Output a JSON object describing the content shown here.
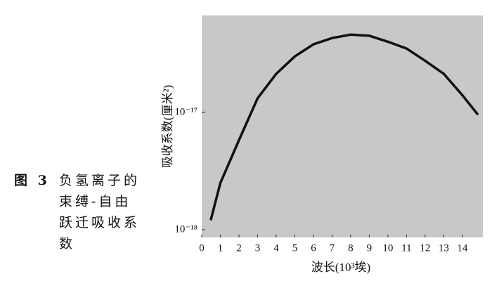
{
  "chart_data": {
    "type": "line",
    "x_label": "波长(10³埃)",
    "y_label": "吸收系数(厘米²)",
    "caption_label": "图 3",
    "caption_lines": [
      "负氢离子的",
      "束缚-自由",
      "跃迁吸收系",
      "数"
    ],
    "log_y": true,
    "color": "#111111",
    "x": [
      0.5,
      1,
      2,
      3,
      4,
      5,
      6,
      7,
      8,
      9,
      10,
      11,
      12,
      13,
      14,
      14.8
    ],
    "values": [
      1.23e-18,
      2.5e-18,
      5.8e-18,
      1.32e-17,
      2.13e-17,
      3e-17,
      3.8e-17,
      4.3e-17,
      4.6e-17,
      4.5e-17,
      4e-17,
      3.5e-17,
      2.75e-17,
      2.13e-17,
      1.4e-17,
      9.7e-18
    ],
    "xlim": [
      0,
      15.1
    ],
    "ylim": [
      8.6e-19,
      6.7e-17
    ],
    "xticks": [
      0,
      1,
      2,
      3,
      4,
      5,
      6,
      7,
      8,
      9,
      10,
      11,
      12,
      13,
      14
    ],
    "yticks": [
      {
        "value": 1e-18,
        "label": "10⁻¹⁸"
      },
      {
        "value": 1e-17,
        "label": "10⁻¹⁷"
      }
    ]
  }
}
